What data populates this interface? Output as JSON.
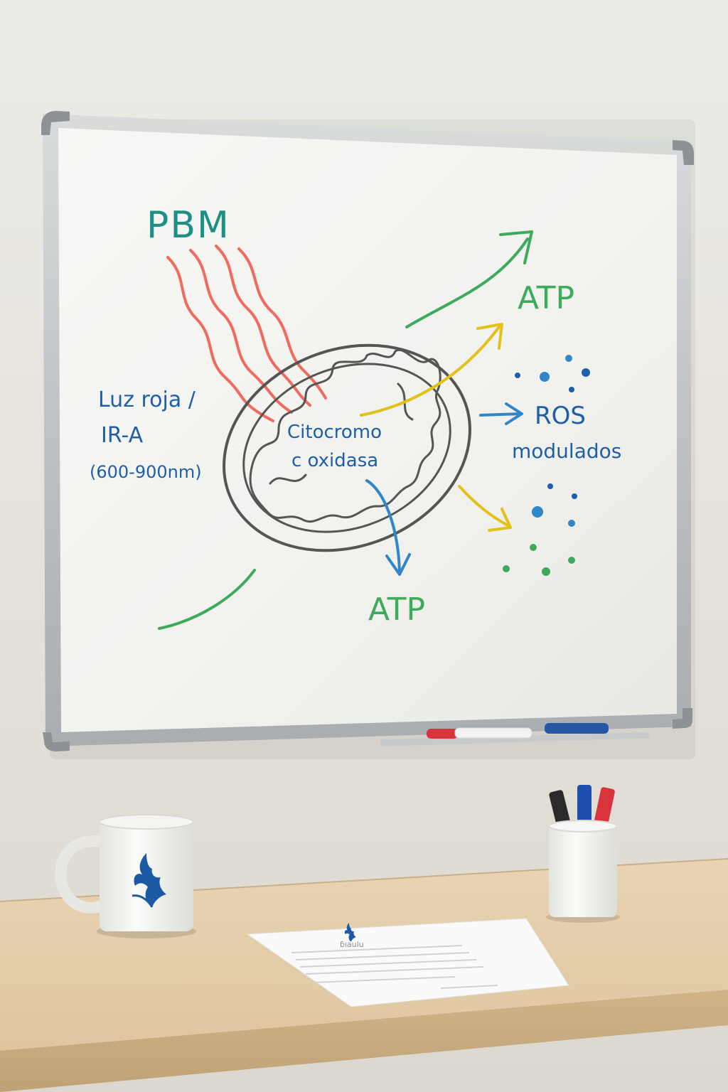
{
  "whiteboard": {
    "title": "PBM",
    "light_label_line1": "Luz roja /",
    "light_label_line2": "IR-A",
    "wavelength": "(600-900nm)",
    "enzyme_line1": "Citocromo",
    "enzyme_line2": "c oxidasa",
    "atp_top": "ATP",
    "ros_line1": "ROS",
    "ros_line2": "modulados",
    "atp_bottom": "ATP"
  },
  "paper": {
    "heading": "ɓıaulu"
  },
  "colors": {
    "teal_marker": "#1f8f86",
    "blue_marker": "#1e5fa8",
    "green_marker": "#3daa5c",
    "red_marker": "#ef6b5f",
    "yellow_marker": "#e2c21a",
    "mito_outline": "#555555",
    "logo_blue": "#1d5aa6"
  },
  "icons": {
    "mug_logo": "bird-logo-icon",
    "paper_logo": "bird-logo-icon"
  }
}
